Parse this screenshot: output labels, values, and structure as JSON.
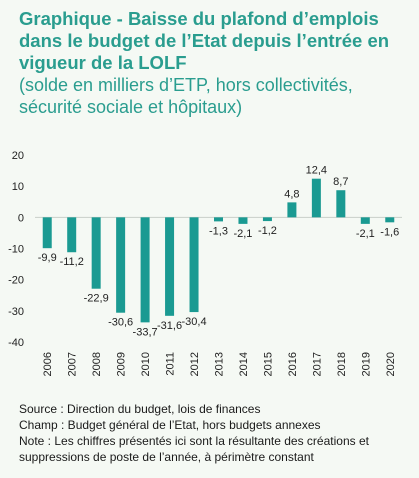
{
  "header": {
    "title": "Graphique - Baisse du plafond d’emplois dans le budget de l’Etat depuis l’entrée en vigueur de la LOLF",
    "subtitle": "(solde en milliers d’ETP, hors collectivités, sécurité sociale et hôpitaux)"
  },
  "colors": {
    "bar": "#1a9a92",
    "title": "#2a9d8f",
    "background": "#f5f9f4"
  },
  "chart_data": {
    "type": "bar",
    "categories": [
      "2006",
      "2007",
      "2008",
      "2009",
      "2010",
      "2011",
      "2012",
      "2013",
      "2014",
      "2015",
      "2016",
      "2017",
      "2018",
      "2019",
      "2020"
    ],
    "values": [
      -9.9,
      -11.2,
      -22.9,
      -30.6,
      -33.7,
      -31.6,
      -30.4,
      -1.3,
      -2.1,
      -1.2,
      4.8,
      12.4,
      8.7,
      -2.1,
      -1.6
    ],
    "labels": [
      "-9,9",
      "-11,2",
      "-22,9",
      "-30,6",
      "-33,7",
      "-31,6",
      "-30,4",
      "-1,3",
      "-2,1",
      "-1,2",
      "4,8",
      "12,4",
      "8,7",
      "-2,1",
      "-1,6"
    ],
    "ylim": [
      -40,
      20
    ],
    "yticks": [
      20,
      10,
      0,
      -10,
      -20,
      -30,
      -40
    ],
    "grid": false,
    "xlabel": "",
    "ylabel": ""
  },
  "notes": {
    "source": "Source : Direction du budget, lois de finances",
    "scope": "Champ : Budget général de l’Etat, hors budgets annexes",
    "note": "Note : Les chiffres présentés ici sont la résultante des créations et suppressions de poste de l’année, à périmètre constant"
  }
}
